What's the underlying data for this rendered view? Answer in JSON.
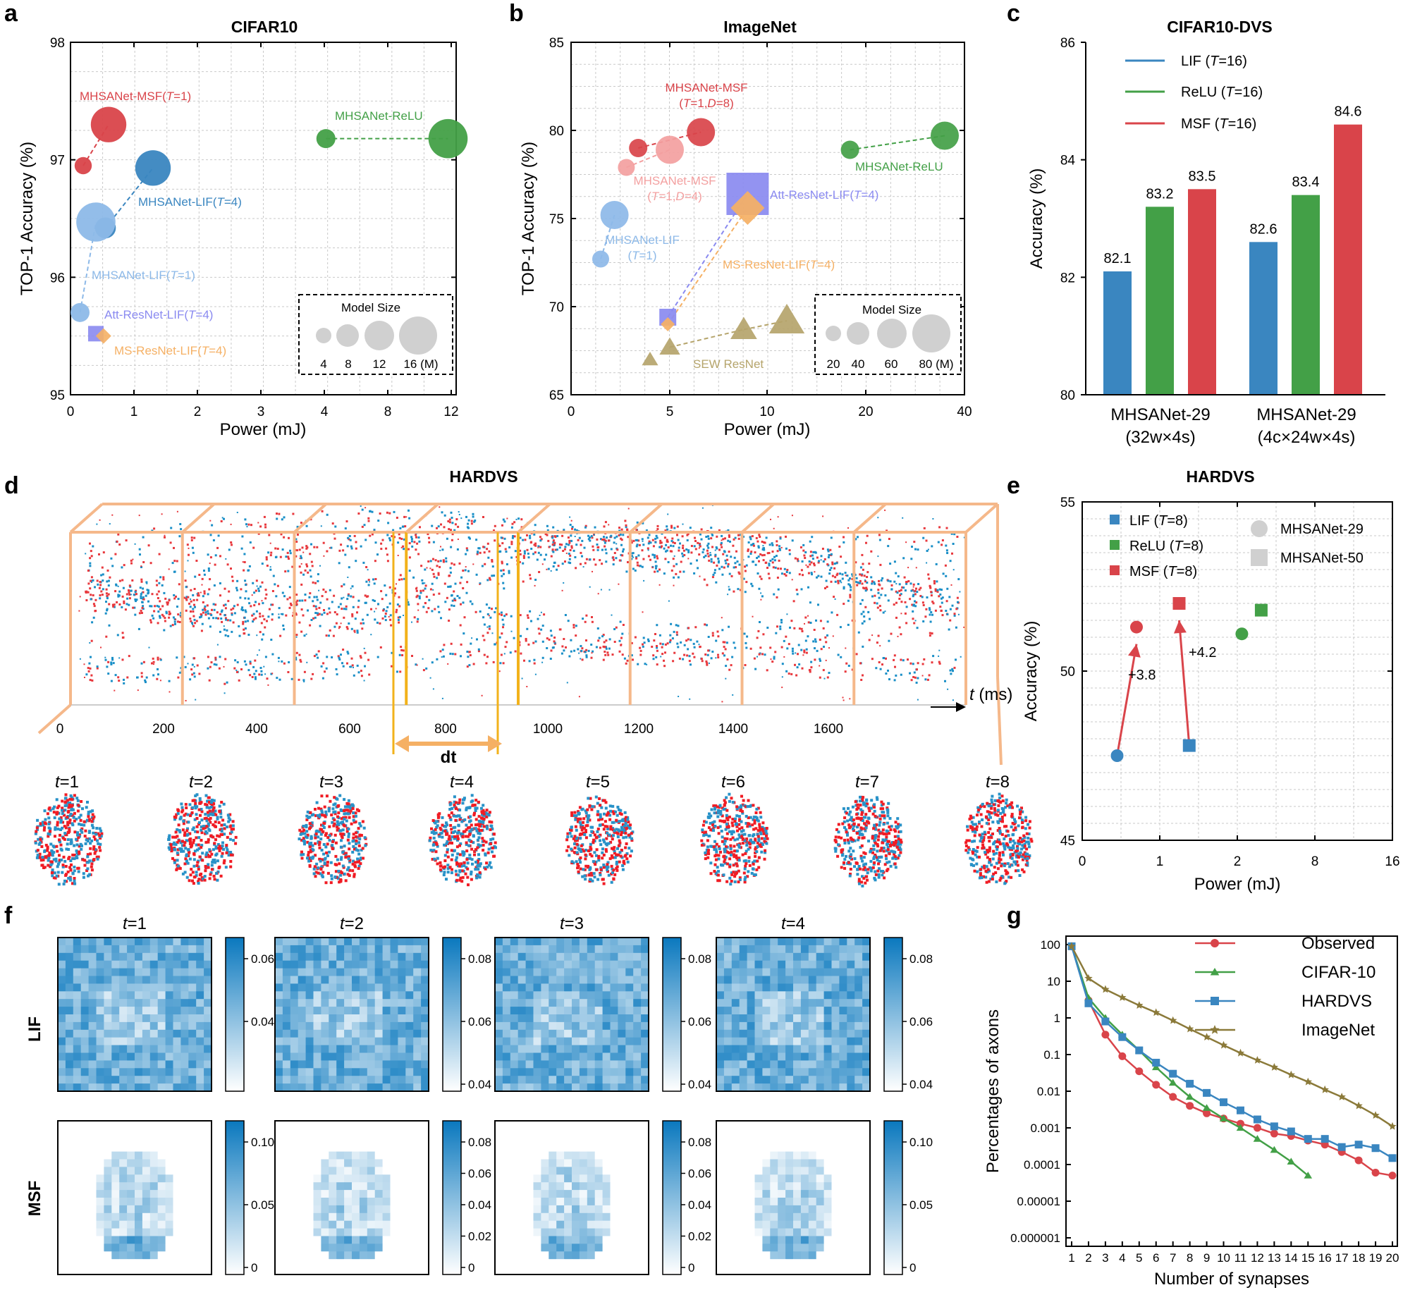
{
  "panel_labels": {
    "a": "a",
    "b": "b",
    "c": "c",
    "d": "d",
    "e": "e",
    "f": "f",
    "g": "g"
  },
  "colors": {
    "red": "#d9444a",
    "blue": "#3a86c0",
    "lightblue": "#8db9e8",
    "purple": "#8a8af0",
    "orange": "#f5b064",
    "green": "#43a047",
    "olive": "#b5a46b",
    "pink": "#f3a0a0",
    "olive_line": "#8b7a3a"
  },
  "chart_data": [
    {
      "id": "a",
      "type": "scatter",
      "title": "CIFAR10",
      "xlabel": "Power (mJ)",
      "ylabel": "TOP-1 Accuracy (%)",
      "xticks": [
        "0",
        "1",
        "2",
        "3",
        "4",
        "8",
        "12"
      ],
      "yticks": [
        "95",
        "96",
        "97",
        "98"
      ],
      "ylim": [
        95,
        98
      ],
      "points": [
        {
          "name": "MHSANet-MSF(T=1)",
          "x": 0.2,
          "y": 96.95,
          "size_m": 4,
          "color": "red"
        },
        {
          "name": "MHSANet-MSF(T=1)",
          "x": 0.6,
          "y": 97.3,
          "size_m": 14,
          "color": "red"
        },
        {
          "name": "MHSANet-LIF(T=4)",
          "x": 0.55,
          "y": 96.42,
          "size_m": 6,
          "color": "blue"
        },
        {
          "name": "MHSANet-LIF(T=4)",
          "x": 1.3,
          "y": 96.93,
          "size_m": 14,
          "color": "blue"
        },
        {
          "name": "MHSANet-LIF(T=1)",
          "x": 0.15,
          "y": 95.7,
          "size_m": 5,
          "color": "lightblue"
        },
        {
          "name": "MHSANet-LIF(T=1)",
          "x": 0.4,
          "y": 96.47,
          "size_m": 16,
          "color": "lightblue"
        },
        {
          "name": "MHSANet-ReLU",
          "x": 4.1,
          "y": 97.18,
          "size_m": 5,
          "color": "green"
        },
        {
          "name": "MHSANet-ReLU",
          "x": 11.8,
          "y": 97.18,
          "size_m": 16,
          "color": "green"
        },
        {
          "name": "Att-ResNet-LIF(T=4)",
          "x": 0.4,
          "y": 95.52,
          "size_m": 4,
          "color": "purple",
          "shape": "square"
        },
        {
          "name": "MS-ResNet-LIF(T=4)",
          "x": 0.52,
          "y": 95.5,
          "size_m": 3,
          "color": "orange",
          "shape": "diamond"
        }
      ],
      "labels": {
        "msf": "MHSANet-MSF(",
        "lif4": "MHSANet-LIF(",
        "lif1": "MHSANet-LIF(",
        "relu": "MHSANet-ReLU",
        "att": "Att-ResNet-LIF(",
        "ms": "MS-ResNet-LIF("
      },
      "size_legend": {
        "title": "Model Size",
        "entries": [
          "4",
          "8",
          "12",
          "16 (M)"
        ]
      }
    },
    {
      "id": "b",
      "type": "scatter",
      "title": "ImageNet",
      "xlabel": "Power (mJ)",
      "ylabel": "TOP-1 Accuracy (%)",
      "xticks": [
        "0",
        "5",
        "10",
        "20",
        "40"
      ],
      "yticks": [
        "65",
        "70",
        "75",
        "80",
        "85"
      ],
      "ylim": [
        65,
        85
      ],
      "points": [
        {
          "name": "MHSANet-MSF (T=1,D=8)",
          "x": 3.4,
          "y": 79.0,
          "color": "red"
        },
        {
          "name": "MHSANet-MSF (T=1,D=8)",
          "x": 6.6,
          "y": 79.9,
          "color": "red"
        },
        {
          "name": "MHSANet-MSF (T=1,D=4)",
          "x": 2.8,
          "y": 77.9,
          "color": "pink"
        },
        {
          "name": "MHSANet-MSF (T=1,D=4)",
          "x": 5.0,
          "y": 78.9,
          "color": "pink"
        },
        {
          "name": "MHSANet-LIF (T=1)",
          "x": 1.5,
          "y": 72.7,
          "color": "lightblue"
        },
        {
          "name": "MHSANet-LIF (T=1)",
          "x": 2.2,
          "y": 75.2,
          "color": "lightblue"
        },
        {
          "name": "MHSANet-ReLU",
          "x": 18.4,
          "y": 78.9,
          "color": "green"
        },
        {
          "name": "MHSANet-ReLU",
          "x": 36.0,
          "y": 79.7,
          "color": "green"
        },
        {
          "name": "Att-ResNet-LIF(T=4)",
          "x": 4.9,
          "y": 69.4,
          "color": "purple",
          "shape": "square"
        },
        {
          "name": "Att-ResNet-LIF(T=4)",
          "x": 9.0,
          "y": 76.4,
          "color": "purple",
          "shape": "square"
        },
        {
          "name": "MS-ResNet-LIF(T=4)",
          "x": 4.9,
          "y": 69.0,
          "color": "orange",
          "shape": "diamond"
        },
        {
          "name": "MS-ResNet-LIF(T=4)",
          "x": 9.0,
          "y": 75.6,
          "color": "orange",
          "shape": "diamond"
        },
        {
          "name": "SEW ResNet",
          "x": 4.0,
          "y": 67.0,
          "color": "olive",
          "shape": "triangle"
        },
        {
          "name": "SEW ResNet",
          "x": 5.0,
          "y": 67.7,
          "color": "olive",
          "shape": "triangle"
        },
        {
          "name": "SEW ResNet",
          "x": 8.8,
          "y": 68.7,
          "color": "olive",
          "shape": "triangle"
        },
        {
          "name": "SEW ResNet",
          "x": 12.0,
          "y": 69.2,
          "color": "olive",
          "shape": "triangle"
        }
      ],
      "labels": {
        "msf8a": "MHSANet-MSF",
        "msf8b": "(",
        "msf4a": "MHSANet-MSF",
        "msf4b": "(",
        "lif1a": "MHSANet-LIF",
        "lif1b": "(",
        "relu": "MHSANet-ReLU",
        "att": "Att-ResNet-LIF(",
        "ms": "MS-ResNet-LIF(",
        "sew": "SEW ResNet"
      },
      "size_legend": {
        "title": "Model Size",
        "entries": [
          "20",
          "40",
          "60",
          "80 (M)"
        ]
      }
    },
    {
      "id": "c",
      "type": "bar",
      "title": "CIFAR10-DVS",
      "ylabel": "Accuracy (%)",
      "ylim": [
        80,
        86
      ],
      "yticks": [
        "80",
        "82",
        "84",
        "86"
      ],
      "categories": [
        "MHSANet-29\n(32w×4s)",
        "MHSANet-29\n(4c×24w×4s)"
      ],
      "cat_line1": [
        "MHSANet-29",
        "MHSANet-29"
      ],
      "cat_line2": [
        "(32w×4s)",
        "(4c×24w×4s)"
      ],
      "series": [
        {
          "name": "LIF (T=16)",
          "values": [
            82.1,
            82.6
          ],
          "color": "blue"
        },
        {
          "name": "ReLU (T=16)",
          "values": [
            83.2,
            83.4
          ],
          "color": "green"
        },
        {
          "name": "MSF (T=16)",
          "values": [
            83.5,
            84.6
          ],
          "color": "red"
        }
      ],
      "legend": [
        {
          "a": "LIF (",
          "b": "=16)"
        },
        {
          "a": "ReLU (",
          "b": "=16)"
        },
        {
          "a": "MSF (",
          "b": "=16)"
        }
      ],
      "value_labels": [
        "82.1",
        "83.2",
        "83.5",
        "82.6",
        "83.4",
        "84.6"
      ]
    },
    {
      "id": "d",
      "type": "scatter",
      "title": "HARDVS",
      "xlabel_t": "t",
      "xlabel_unit": " (ms)",
      "xticks": [
        "0",
        "200",
        "400",
        "600",
        "800",
        "1000",
        "1200",
        "1400",
        "1600"
      ],
      "dt_label": "dt",
      "frames": [
        "1",
        "2",
        "3",
        "4",
        "5",
        "6",
        "7",
        "8"
      ]
    },
    {
      "id": "e",
      "type": "scatter",
      "title": "HARDVS",
      "xlabel": "Power (mJ)",
      "ylabel": "Accuracy (%)",
      "xticks": [
        "0",
        "1",
        "2",
        "8",
        "16"
      ],
      "yticks": [
        "45",
        "50",
        "55"
      ],
      "ylim": [
        45,
        55
      ],
      "points": [
        {
          "name": "LIF MHSANet-29",
          "x": 0.45,
          "y": 47.5,
          "color": "blue",
          "shape": "circle"
        },
        {
          "name": "MSF MHSANet-29",
          "x": 0.7,
          "y": 51.3,
          "color": "red",
          "shape": "circle"
        },
        {
          "name": "LIF MHSANet-50",
          "x": 1.38,
          "y": 47.8,
          "color": "blue",
          "shape": "square"
        },
        {
          "name": "MSF MHSANet-50",
          "x": 1.25,
          "y": 52.0,
          "color": "red",
          "shape": "square"
        },
        {
          "name": "ReLU MHSANet-29",
          "x": 2.35,
          "y": 51.1,
          "color": "green",
          "shape": "circle"
        },
        {
          "name": "ReLU MHSANet-50",
          "x": 3.85,
          "y": 51.8,
          "color": "green",
          "shape": "square"
        }
      ],
      "annotations": [
        "+3.8",
        "+4.2"
      ],
      "legend": [
        {
          "a": "LIF (",
          "b": "=8)"
        },
        {
          "a": "ReLU (",
          "b": "=8)"
        },
        {
          "a": "MSF (",
          "b": "=8)"
        }
      ],
      "legend2": [
        "MHSANet-29",
        "MHSANet-50"
      ]
    },
    {
      "id": "f",
      "type": "heatmap",
      "row_labels": [
        "LIF",
        "MSF"
      ],
      "col_titles": [
        "1",
        "2",
        "3",
        "4"
      ],
      "colorbar_ticks": [
        [
          "0.06",
          "0.04"
        ],
        [
          "0.08",
          "0.06",
          "0.04"
        ],
        [
          "0.08",
          "0.06",
          "0.04"
        ],
        [
          "0.08",
          "0.06",
          "0.04"
        ],
        [
          "0.10",
          "0.05",
          "0"
        ],
        [
          "0.08",
          "0.06",
          "0.04",
          "0.02",
          "0"
        ],
        [
          "0.08",
          "0.06",
          "0.04",
          "0.02",
          "0"
        ],
        [
          "0.10",
          "0.05",
          "0"
        ]
      ]
    },
    {
      "id": "g",
      "type": "line",
      "xlabel": "Number of synapses",
      "ylabel": "Percentages of axons",
      "yticks": [
        "100",
        "10",
        "1",
        "0.1",
        "0.01",
        "0.001",
        "0.0001",
        "0.00001",
        "0.000001"
      ],
      "xticks": [
        "1",
        "2",
        "3",
        "4",
        "5",
        "6",
        "7",
        "8",
        "9",
        "10",
        "11",
        "12",
        "13",
        "14",
        "15",
        "16",
        "17",
        "18",
        "19",
        "20"
      ],
      "series": [
        {
          "name": "Observed",
          "color": "red",
          "marker": "circle",
          "values": [
            90,
            3,
            0.35,
            0.09,
            0.035,
            0.015,
            0.007,
            0.004,
            0.0025,
            0.0018,
            0.0013,
            0.001,
            0.0007,
            0.0006,
            0.00045,
            0.00035,
            0.00022,
            0.00013,
            6e-05,
            5e-05
          ]
        },
        {
          "name": "CIFAR-10",
          "color": "green",
          "marker": "triangle",
          "values": [
            90,
            3.5,
            1.0,
            0.35,
            0.13,
            0.045,
            0.017,
            0.007,
            0.0035,
            0.0018,
            0.001,
            0.0005,
            0.00025,
            0.00012,
            5e-05
          ]
        },
        {
          "name": "HARDVS",
          "color": "blue",
          "marker": "square",
          "values": [
            90,
            2.5,
            0.8,
            0.3,
            0.13,
            0.06,
            0.03,
            0.016,
            0.009,
            0.005,
            0.003,
            0.0017,
            0.0011,
            0.0008,
            0.0005,
            0.0005,
            0.0003,
            0.00035,
            0.00028,
            0.00015
          ]
        },
        {
          "name": "ImageNet",
          "color": "olive_line",
          "marker": "star",
          "values": [
            90,
            12,
            6,
            3.6,
            2.2,
            1.4,
            0.85,
            0.5,
            0.3,
            0.18,
            0.11,
            0.07,
            0.045,
            0.028,
            0.018,
            0.011,
            0.007,
            0.004,
            0.0022,
            0.0011
          ]
        }
      ]
    }
  ]
}
